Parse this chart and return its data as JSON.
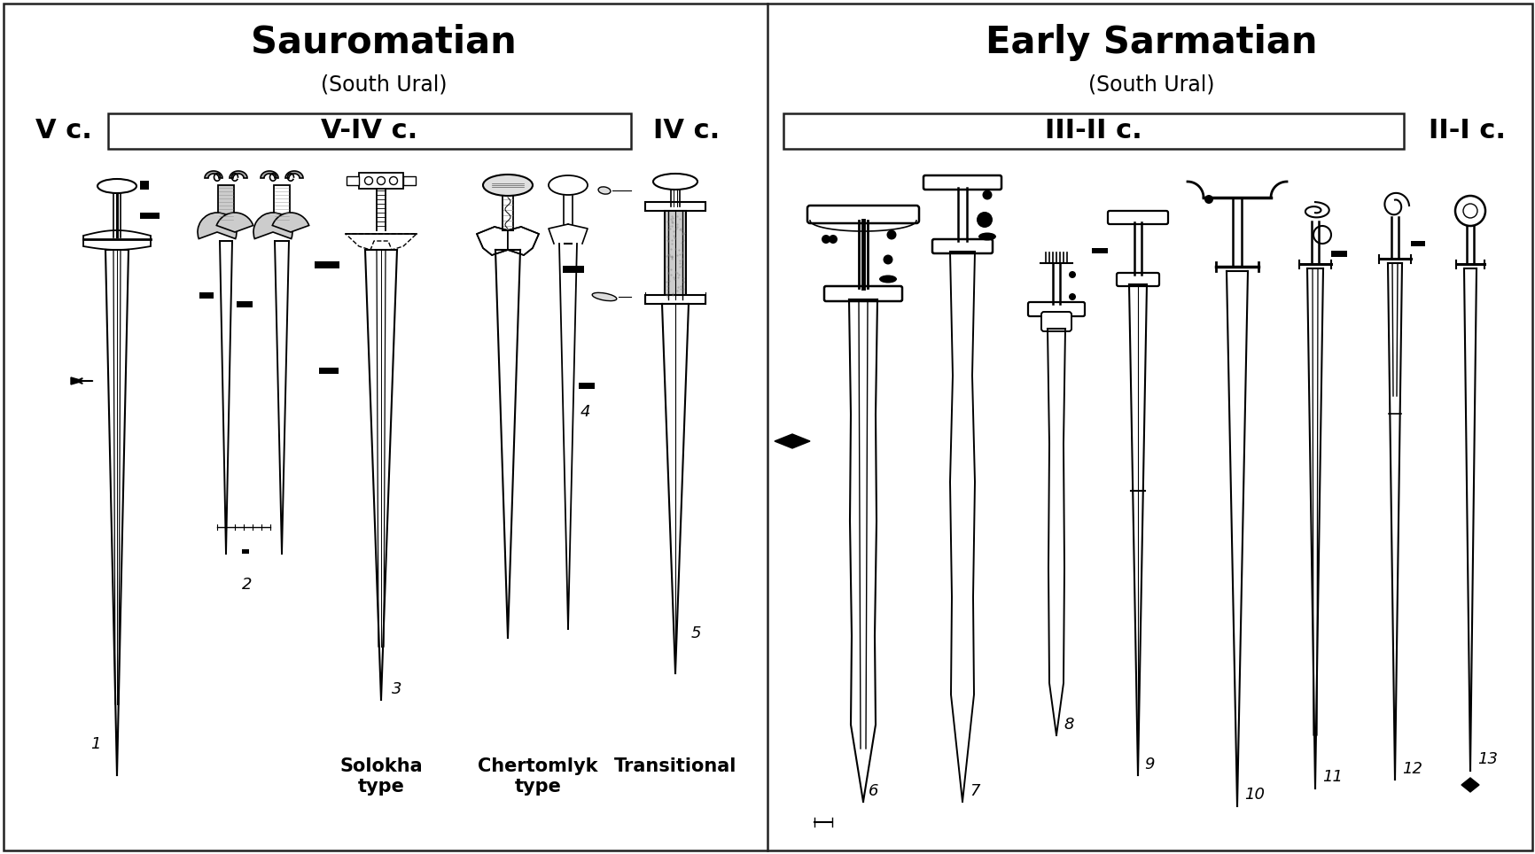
{
  "left_title": "Sauromatian",
  "left_subtitle": "(South Ural)",
  "right_title": "Early Sarmatian",
  "right_subtitle": "(South Ural)",
  "left_period_left": "V c.",
  "left_period_box": "V-IV c.",
  "left_period_right": "IV c.",
  "right_period_box": "III-II c.",
  "right_period_right": "II-I c.",
  "bg_color": "#ffffff",
  "border_color": "#222222",
  "text_color": "#000000",
  "title_fontsize": 30,
  "subtitle_fontsize": 17,
  "period_fontsize": 22,
  "type_label_fontsize": 15,
  "number_fontsize": 13
}
